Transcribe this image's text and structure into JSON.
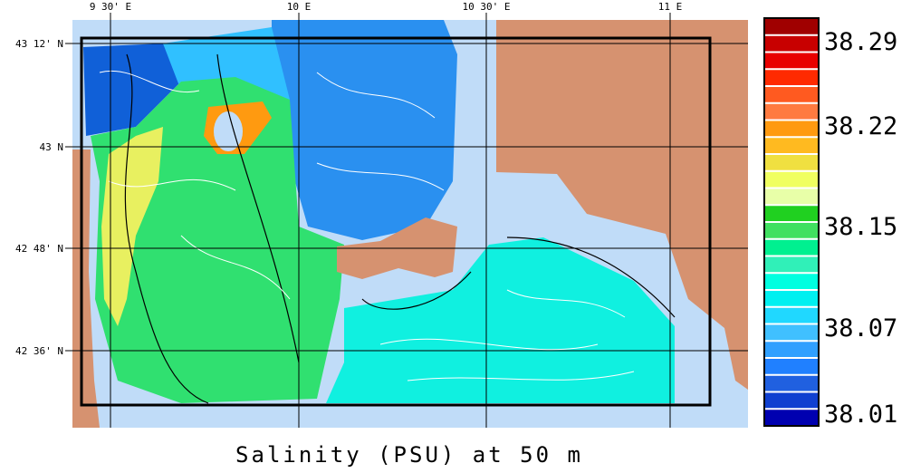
{
  "map": {
    "title": "Salinity (PSU) at 50 m",
    "lon_labels": [
      "9 30' E",
      "10 E",
      "10 30' E",
      "11 E"
    ],
    "lat_labels": [
      "43 12' N",
      "43 N",
      "42 48' N",
      "42 36' N"
    ],
    "colorbar": {
      "colors": [
        "#a00000",
        "#c80000",
        "#e80000",
        "#ff2a00",
        "#ff5a20",
        "#ff7a40",
        "#ff9a10",
        "#ffba20",
        "#f0e040",
        "#f0ff60",
        "#e8ffa8",
        "#20d020",
        "#40e060",
        "#00f090",
        "#30f0b8",
        "#00ffe0",
        "#00f0f0",
        "#20d8ff",
        "#40c0ff",
        "#30a0ff",
        "#2080ff",
        "#2060e0",
        "#1040d0",
        "#0000b0"
      ],
      "labels": [
        "38.29",
        "38.22",
        "38.15",
        "38.07",
        "38.01"
      ]
    }
  }
}
